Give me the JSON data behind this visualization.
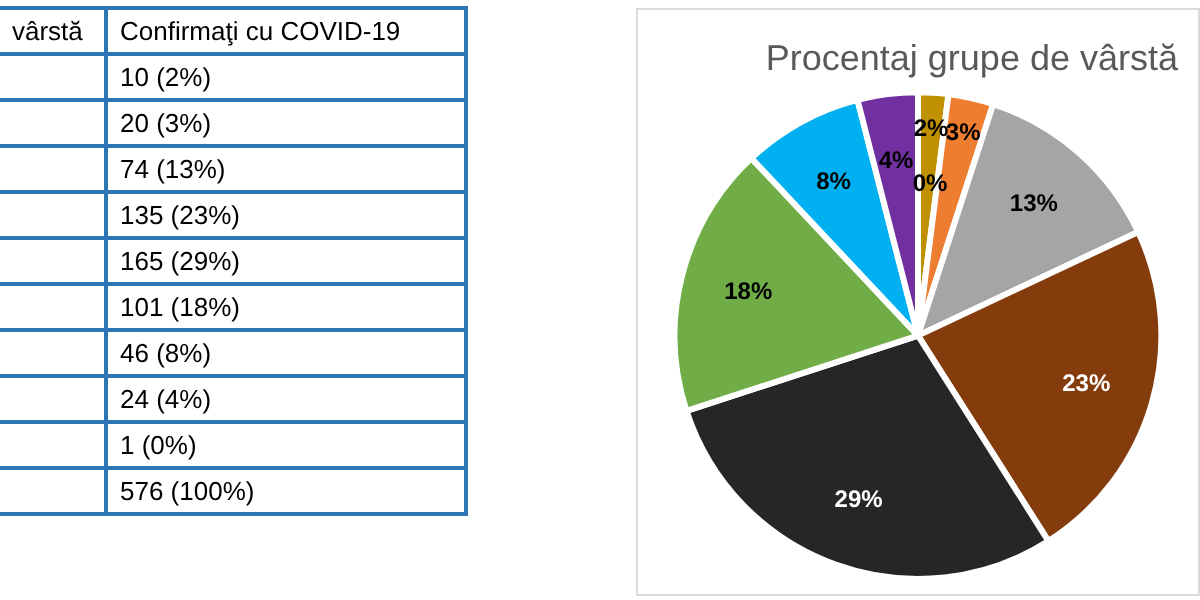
{
  "chart_data": {
    "type": "pie",
    "title": "Procentaj grupe de vârstă",
    "categories": [
      null,
      null,
      null,
      null,
      null,
      null,
      null,
      null,
      null
    ],
    "values": [
      2,
      3,
      13,
      23,
      29,
      18,
      8,
      4,
      0
    ],
    "value_labels": [
      "2%",
      "3%",
      "13%",
      "23%",
      "29%",
      "18%",
      "8%",
      "4%",
      "0%"
    ],
    "colors": [
      "#bf9000",
      "#ed7d31",
      "#a5a5a5",
      "#843c0c",
      "#262626",
      "#70ad47",
      "#00b0f0",
      "#7030a0",
      "#4472c4"
    ],
    "annotations": [
      "vârstă",
      "Confirmaţi cu COVID-19",
      "10 (2%)",
      "20 (3%)",
      "74 (13%)",
      "135 (23%)",
      "165 (29%)",
      "101 (18%)",
      "46 (8%)",
      "24 (4%)",
      "1 (0%)",
      "576 (100%)"
    ],
    "legend": false
  }
}
